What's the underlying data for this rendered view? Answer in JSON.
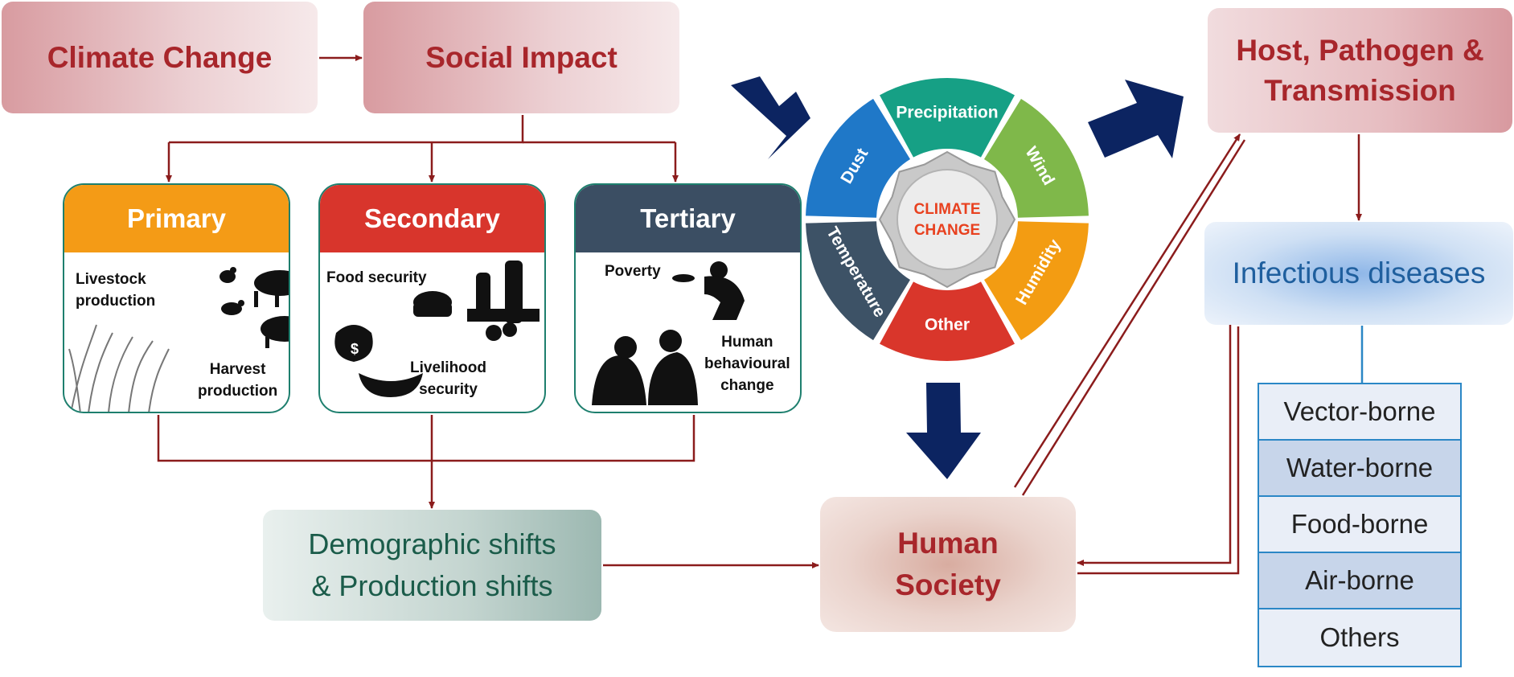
{
  "top": {
    "climate_change": "Climate Change",
    "social_impact": "Social Impact",
    "host_pathogen": "Host, Pathogen &\nTransmission"
  },
  "categories": [
    {
      "title": "Primary",
      "color": "#f49b16",
      "labels": [
        "Livestock\nproduction",
        "Harvest\nproduction"
      ]
    },
    {
      "title": "Secondary",
      "color": "#d8352c",
      "labels": [
        "Food security",
        "Livelihood\nsecurity"
      ]
    },
    {
      "title": "Tertiary",
      "color": "#3b4e63",
      "labels": [
        "Poverty",
        "Human\nbehavioural\nchange"
      ]
    }
  ],
  "demographic": "Demographic shifts\n& Production shifts",
  "human_society": "Human\nSociety",
  "infectious": "Infectious diseases",
  "diseases": [
    "Vector-borne",
    "Water-borne",
    "Food-borne",
    "Air-borne",
    "Others"
  ],
  "wheel": {
    "center": [
      "CLIMATE",
      "CHANGE"
    ],
    "segments": [
      {
        "label": "Precipitation",
        "color": "#16a085"
      },
      {
        "label": "Wind",
        "color": "#7fb84a"
      },
      {
        "label": "Humidity",
        "color": "#f39c12"
      },
      {
        "label": "Other",
        "color": "#d9362b"
      },
      {
        "label": "Temperature",
        "color": "#3d5266"
      },
      {
        "label": "Dust",
        "color": "#1f78c8"
      }
    ]
  },
  "colors": {
    "connector": "#8b1c1c",
    "big_arrow": "#0c2461",
    "accent_text": "#a8262b"
  }
}
